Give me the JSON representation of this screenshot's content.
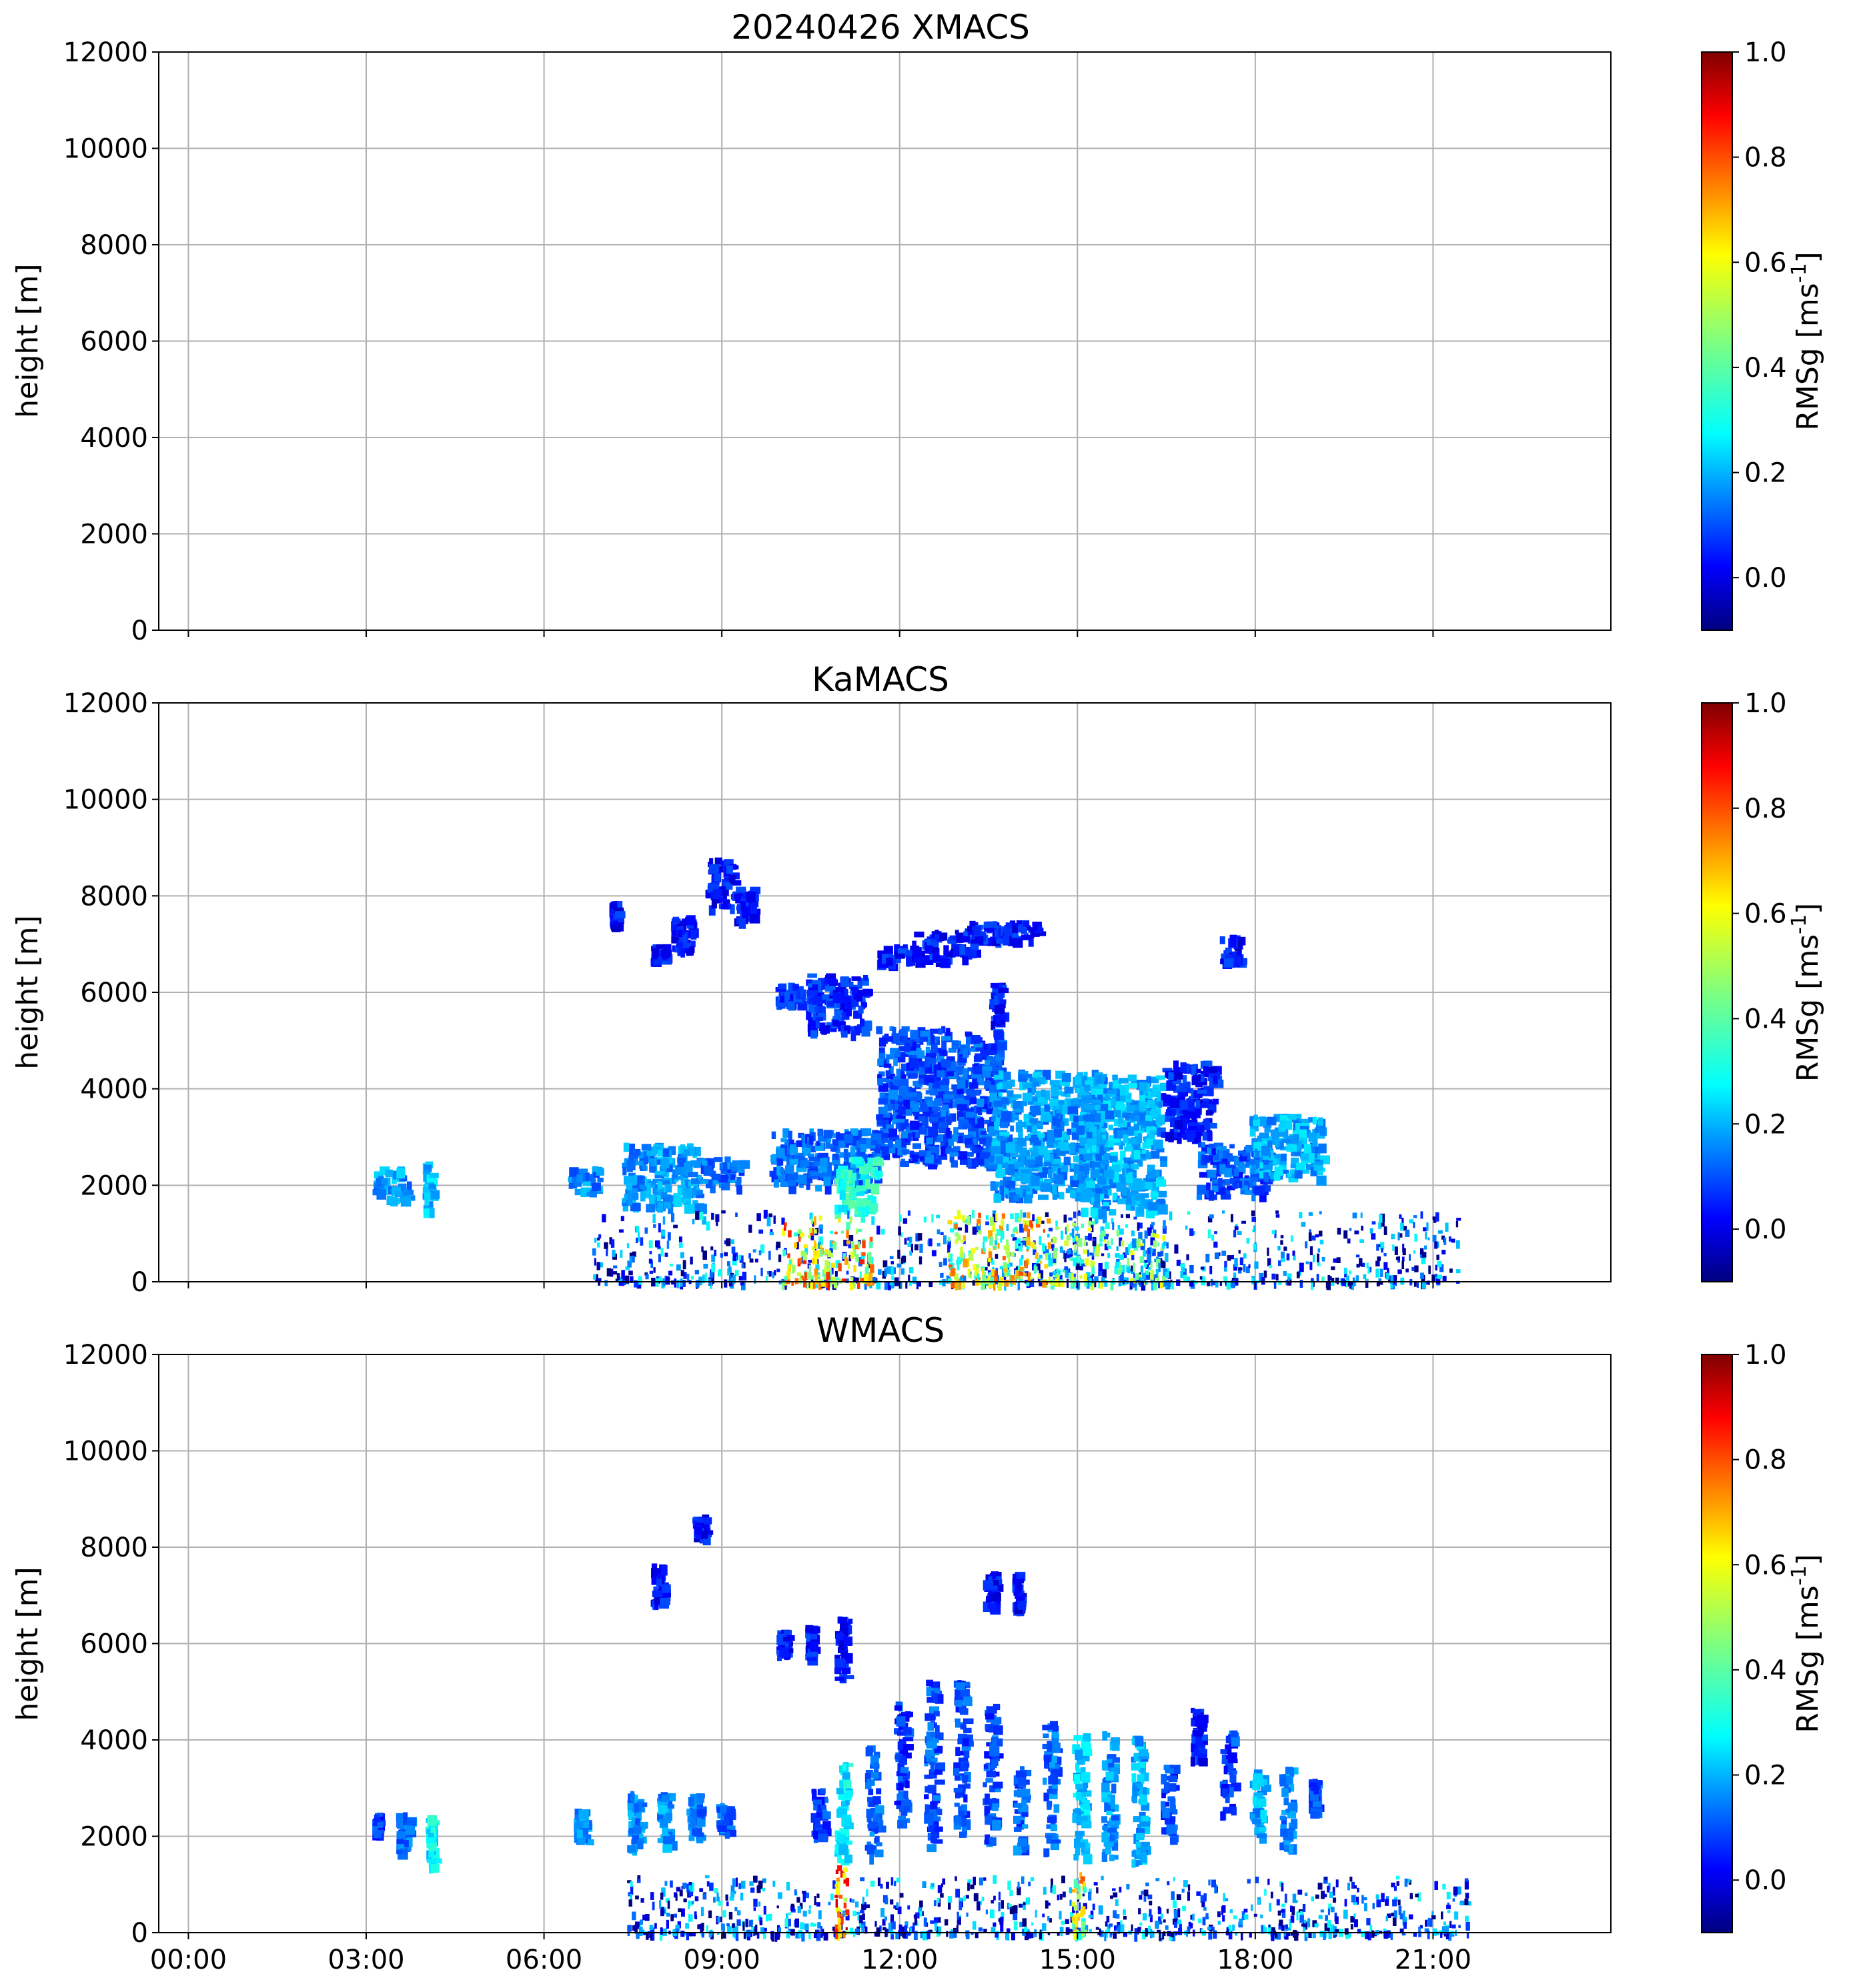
{
  "figure_title": "20240426 XMACS",
  "chart_data": [
    {
      "type": "heatmap",
      "title": "20240426 XMACS",
      "panel": "XMACS",
      "xlabel": "",
      "ylabel": "height [m]",
      "x_range_hours": [
        -0.5,
        24
      ],
      "ylim": [
        0,
        12000
      ],
      "x_ticks": [
        "00:00",
        "03:00",
        "06:00",
        "09:00",
        "12:00",
        "15:00",
        "18:00",
        "21:00"
      ],
      "y_ticks": [
        "0",
        "2000",
        "4000",
        "6000",
        "8000",
        "10000",
        "12000"
      ],
      "grid": true,
      "colorbar": {
        "label": "RMSg [ms^-1]",
        "range": [
          -0.1,
          1.0
        ],
        "ticks": [
          "0.0",
          "0.2",
          "0.4",
          "0.6",
          "0.8",
          "1.0"
        ],
        "colormap": "jet"
      },
      "echoes": []
    },
    {
      "type": "heatmap",
      "title": "KaMACS",
      "panel": "KaMACS",
      "xlabel": "",
      "ylabel": "height [m]",
      "x_range_hours": [
        -0.5,
        24
      ],
      "ylim": [
        0,
        12000
      ],
      "x_ticks": [
        "00:00",
        "03:00",
        "06:00",
        "09:00",
        "12:00",
        "15:00",
        "18:00",
        "21:00"
      ],
      "y_ticks": [
        "0",
        "2000",
        "4000",
        "6000",
        "8000",
        "10000",
        "12000"
      ],
      "grid": true,
      "colorbar": {
        "label": "RMSg [ms^-1]",
        "range": [
          -0.1,
          1.0
        ],
        "ticks": [
          "0.0",
          "0.2",
          "0.4",
          "0.6",
          "0.8",
          "1.0"
        ],
        "colormap": "jet"
      },
      "echoes": [
        {
          "t0": 3.1,
          "t1": 3.7,
          "h0": 1700,
          "h1": 2400,
          "v": 0.2
        },
        {
          "t0": 3.95,
          "t1": 4.1,
          "h0": 1500,
          "h1": 2500,
          "v": 0.25
        },
        {
          "t0": 6.4,
          "t1": 6.9,
          "h0": 1900,
          "h1": 2400,
          "v": 0.18
        },
        {
          "t0": 7.3,
          "t1": 8.6,
          "h0": 1600,
          "h1": 2900,
          "v": 0.2
        },
        {
          "t0": 8.6,
          "t1": 9.3,
          "h0": 2000,
          "h1": 2600,
          "v": 0.15
        },
        {
          "t0": 7.1,
          "t1": 7.2,
          "h0": 7400,
          "h1": 7900,
          "v": 0.05
        },
        {
          "t0": 7.8,
          "t1": 8.0,
          "h0": 6700,
          "h1": 7000,
          "v": 0.05
        },
        {
          "t0": 8.1,
          "t1": 8.5,
          "h0": 6900,
          "h1": 7600,
          "v": 0.05
        },
        {
          "t0": 8.7,
          "t1": 9.2,
          "h0": 7800,
          "h1": 8800,
          "v": 0.05
        },
        {
          "t0": 9.2,
          "t1": 9.5,
          "h0": 7500,
          "h1": 8200,
          "v": 0.05
        },
        {
          "t0": 9.9,
          "t1": 10.3,
          "h0": 5800,
          "h1": 6200,
          "v": 0.08
        },
        {
          "t0": 10.4,
          "t1": 11.4,
          "h0": 5200,
          "h1": 6400,
          "v": 0.08
        },
        {
          "t0": 11.6,
          "t1": 12.3,
          "h0": 6600,
          "h1": 7000,
          "v": 0.06
        },
        {
          "t0": 12.2,
          "t1": 13.3,
          "h0": 6700,
          "h1": 7300,
          "v": 0.06
        },
        {
          "t0": 13.0,
          "t1": 13.7,
          "h0": 7000,
          "h1": 7500,
          "v": 0.06
        },
        {
          "t0": 13.7,
          "t1": 14.4,
          "h0": 7100,
          "h1": 7500,
          "v": 0.06
        },
        {
          "t0": 13.5,
          "t1": 13.7,
          "h0": 5400,
          "h1": 6200,
          "v": 0.06
        },
        {
          "t0": 11.6,
          "t1": 13.7,
          "h0": 2500,
          "h1": 5300,
          "v": 0.12
        },
        {
          "t0": 9.8,
          "t1": 11.6,
          "h0": 2000,
          "h1": 3200,
          "v": 0.15
        },
        {
          "t0": 10.9,
          "t1": 11.6,
          "h0": 1500,
          "h1": 2600,
          "v": 0.35
        },
        {
          "t0": 13.5,
          "t1": 15.4,
          "h0": 1800,
          "h1": 4400,
          "v": 0.2
        },
        {
          "t0": 15.0,
          "t1": 16.4,
          "h0": 1500,
          "h1": 4300,
          "v": 0.22
        },
        {
          "t0": 16.4,
          "t1": 17.3,
          "h0": 3000,
          "h1": 4600,
          "v": 0.06
        },
        {
          "t0": 17.0,
          "t1": 18.2,
          "h0": 1800,
          "h1": 2900,
          "v": 0.12
        },
        {
          "t0": 17.9,
          "t1": 19.1,
          "h0": 2200,
          "h1": 3500,
          "v": 0.22
        },
        {
          "t0": 17.4,
          "t1": 17.7,
          "h0": 6600,
          "h1": 7200,
          "v": 0.05
        },
        {
          "t0": 6.8,
          "t1": 21.4,
          "h0": 0,
          "h1": 1500,
          "v": 0.1,
          "kind": "bl"
        },
        {
          "t0": 10.0,
          "t1": 11.5,
          "h0": 0,
          "h1": 1400,
          "v": 0.6,
          "kind": "bl"
        },
        {
          "t0": 12.8,
          "t1": 14.5,
          "h0": 0,
          "h1": 1500,
          "v": 0.55,
          "kind": "bl"
        },
        {
          "t0": 14.5,
          "t1": 16.5,
          "h0": 0,
          "h1": 1300,
          "v": 0.35,
          "kind": "bl"
        }
      ]
    },
    {
      "type": "heatmap",
      "title": "WMACS",
      "panel": "WMACS",
      "xlabel": "",
      "ylabel": "height [m]",
      "x_range_hours": [
        -0.5,
        24
      ],
      "ylim": [
        0,
        12000
      ],
      "x_ticks": [
        "00:00",
        "03:00",
        "06:00",
        "09:00",
        "12:00",
        "15:00",
        "18:00",
        "21:00"
      ],
      "y_ticks": [
        "0",
        "2000",
        "4000",
        "6000",
        "8000",
        "10000",
        "12000"
      ],
      "grid": true,
      "colorbar": {
        "label": "RMSg [ms^-1]",
        "range": [
          -0.1,
          1.0
        ],
        "ticks": [
          "0.0",
          "0.2",
          "0.4",
          "0.6",
          "0.8",
          "1.0"
        ],
        "colormap": "jet"
      },
      "echoes": [
        {
          "t0": 3.1,
          "t1": 3.2,
          "h0": 2100,
          "h1": 2500,
          "v": 0.1
        },
        {
          "t0": 3.5,
          "t1": 3.7,
          "h0": 1700,
          "h1": 2500,
          "v": 0.15
        },
        {
          "t0": 4.0,
          "t1": 4.1,
          "h0": 1400,
          "h1": 2500,
          "v": 0.3
        },
        {
          "t0": 6.5,
          "t1": 6.7,
          "h0": 1900,
          "h1": 2600,
          "v": 0.18
        },
        {
          "t0": 7.4,
          "t1": 7.6,
          "h0": 1700,
          "h1": 3000,
          "v": 0.2
        },
        {
          "t0": 7.9,
          "t1": 8.1,
          "h0": 1800,
          "h1": 3000,
          "v": 0.2
        },
        {
          "t0": 8.4,
          "t1": 8.6,
          "h0": 2000,
          "h1": 2900,
          "v": 0.15
        },
        {
          "t0": 8.9,
          "t1": 9.1,
          "h0": 2100,
          "h1": 2700,
          "v": 0.15
        },
        {
          "t0": 7.8,
          "t1": 8.0,
          "h0": 6800,
          "h1": 7700,
          "v": 0.05
        },
        {
          "t0": 8.5,
          "t1": 8.7,
          "h0": 8200,
          "h1": 8700,
          "v": 0.05
        },
        {
          "t0": 9.9,
          "t1": 10.1,
          "h0": 5800,
          "h1": 6300,
          "v": 0.06
        },
        {
          "t0": 10.4,
          "t1": 10.5,
          "h0": 5700,
          "h1": 6400,
          "v": 0.06
        },
        {
          "t0": 10.9,
          "t1": 11.1,
          "h0": 5300,
          "h1": 6600,
          "v": 0.06
        },
        {
          "t0": 10.5,
          "t1": 10.7,
          "h0": 2000,
          "h1": 3000,
          "v": 0.1
        },
        {
          "t0": 10.9,
          "t1": 11.1,
          "h0": 1500,
          "h1": 3600,
          "v": 0.3
        },
        {
          "t0": 11.4,
          "t1": 11.6,
          "h0": 1600,
          "h1": 3900,
          "v": 0.15
        },
        {
          "t0": 11.9,
          "t1": 12.1,
          "h0": 2300,
          "h1": 4800,
          "v": 0.1
        },
        {
          "t0": 12.4,
          "t1": 12.6,
          "h0": 1800,
          "h1": 5300,
          "v": 0.12
        },
        {
          "t0": 12.9,
          "t1": 13.1,
          "h0": 2000,
          "h1": 5300,
          "v": 0.12
        },
        {
          "t0": 13.4,
          "t1": 13.6,
          "h0": 1900,
          "h1": 4800,
          "v": 0.12
        },
        {
          "t0": 13.9,
          "t1": 14.1,
          "h0": 1700,
          "h1": 3500,
          "v": 0.15
        },
        {
          "t0": 14.4,
          "t1": 14.6,
          "h0": 1700,
          "h1": 4400,
          "v": 0.15
        },
        {
          "t0": 14.9,
          "t1": 15.1,
          "h0": 1500,
          "h1": 4300,
          "v": 0.25
        },
        {
          "t0": 15.4,
          "t1": 15.6,
          "h0": 1600,
          "h1": 4300,
          "v": 0.2
        },
        {
          "t0": 15.9,
          "t1": 16.1,
          "h0": 1400,
          "h1": 4100,
          "v": 0.22
        },
        {
          "t0": 16.4,
          "t1": 16.6,
          "h0": 2000,
          "h1": 3500,
          "v": 0.1
        },
        {
          "t0": 16.9,
          "t1": 17.1,
          "h0": 3600,
          "h1": 4800,
          "v": 0.06
        },
        {
          "t0": 17.4,
          "t1": 17.6,
          "h0": 2500,
          "h1": 4200,
          "v": 0.1
        },
        {
          "t0": 17.9,
          "t1": 18.1,
          "h0": 2000,
          "h1": 3400,
          "v": 0.22
        },
        {
          "t0": 18.4,
          "t1": 18.6,
          "h0": 1800,
          "h1": 3500,
          "v": 0.18
        },
        {
          "t0": 18.9,
          "t1": 19.0,
          "h0": 2500,
          "h1": 3200,
          "v": 0.12
        },
        {
          "t0": 13.4,
          "t1": 13.6,
          "h0": 6800,
          "h1": 7500,
          "v": 0.05
        },
        {
          "t0": 13.9,
          "t1": 14.0,
          "h0": 6700,
          "h1": 7500,
          "v": 0.05
        },
        {
          "t0": 7.4,
          "t1": 21.6,
          "h0": 0,
          "h1": 1200,
          "v": 0.1,
          "kind": "bl"
        },
        {
          "t0": 10.9,
          "t1": 11.1,
          "h0": 0,
          "h1": 1500,
          "v": 0.7,
          "kind": "bl"
        },
        {
          "t0": 14.9,
          "t1": 15.1,
          "h0": 0,
          "h1": 1400,
          "v": 0.55,
          "kind": "bl"
        }
      ]
    }
  ]
}
